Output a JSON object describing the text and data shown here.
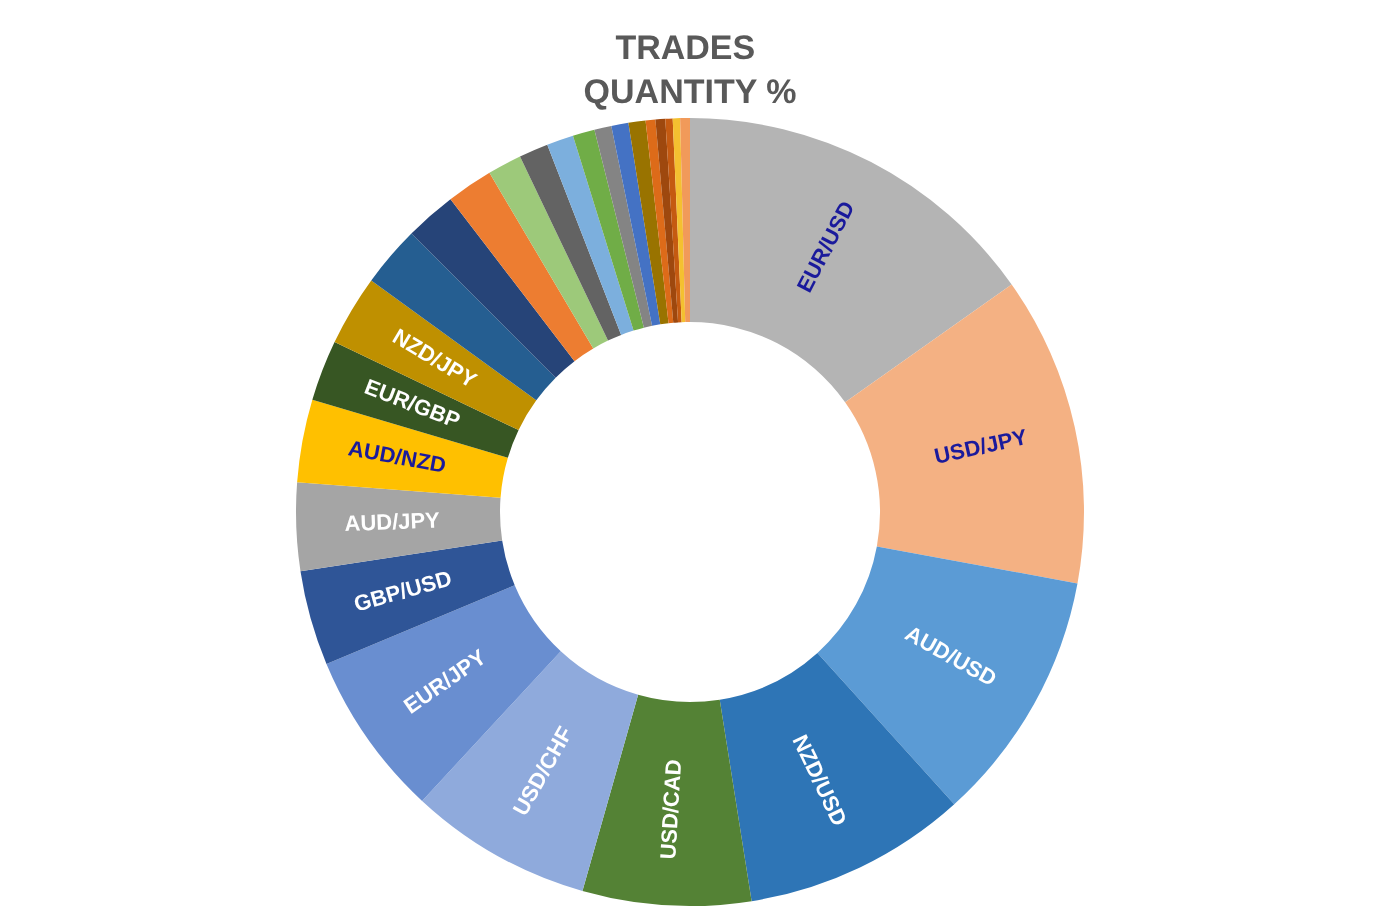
{
  "chart_data": {
    "type": "donut",
    "title": "TRADES QUANTITY %",
    "categories": [
      "EUR/USD",
      "USD/JPY",
      "AUD/USD",
      "NZD/USD",
      "USD/CAD",
      "USD/CHF",
      "EUR/JPY",
      "GBP/USD",
      "AUD/JPY",
      "AUD/NZD",
      "EUR/GBP",
      "NZD/JPY",
      null,
      null,
      null,
      null,
      null,
      null,
      null,
      null,
      null,
      null,
      null,
      null,
      null,
      null,
      null
    ],
    "values": [
      15.2,
      12.7,
      10.4,
      9.2,
      6.9,
      7.5,
      6.8,
      3.9,
      3.6,
      3.4,
      2.5,
      2.9,
      2.5,
      2.1,
      1.9,
      1.4,
      1.2,
      1.1,
      0.9,
      0.7,
      0.7,
      0.7,
      0.4,
      0.4,
      0.3,
      0.3,
      0.4
    ],
    "colors": [
      "#b4b4b4",
      "#f4b183",
      "#5b9bd5",
      "#2e75b6",
      "#548235",
      "#8faadc",
      "#698ed0",
      "#2f5597",
      "#a5a5a5",
      "#ffc000",
      "#375623",
      "#bf9000",
      "#255e91",
      "#264478",
      "#ed7d31",
      "#9dc97a",
      "#636363",
      "#7cafdd",
      "#70ad47",
      "#848484",
      "#4472c4",
      "#997300",
      "#dd6b19",
      "#9e480e",
      "#c55a11",
      "#f4c030",
      "#f19a5a"
    ],
    "legend": false
  }
}
